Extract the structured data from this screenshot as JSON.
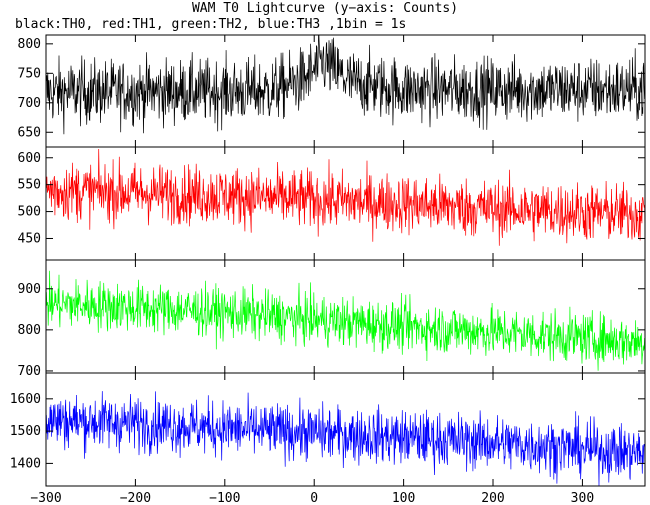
{
  "title": "WAM T0 Lightcurve (y−axis: Counts)",
  "subtitle": "black:TH0, red:TH1, green:TH2, blue:TH3 ,1bin = 1s",
  "chart_data": {
    "type": "line",
    "x_range": [
      -300,
      370
    ],
    "x_ticks": [
      -300,
      -200,
      -100,
      0,
      100,
      200,
      300
    ],
    "x_tick_labels": [
      "−300",
      "−200",
      "−100",
      "0",
      "100",
      "200",
      "300"
    ],
    "bin_seconds": 1,
    "panels": [
      {
        "name": "TH0",
        "color": "#000000",
        "ylim": [
          625,
          815
        ],
        "y_ticks": [
          650,
          700,
          750,
          800
        ],
        "y_tick_labels": [
          "650",
          "700",
          "750",
          "800"
        ],
        "trend": [
          [
            -300,
            718
          ],
          [
            -50,
            720
          ],
          [
            -10,
            740
          ],
          [
            10,
            770
          ],
          [
            40,
            735
          ],
          [
            100,
            722
          ],
          [
            370,
            722
          ]
        ],
        "noise": 27
      },
      {
        "name": "TH1",
        "color": "#ff0000",
        "ylim": [
          410,
          620
        ],
        "y_ticks": [
          450,
          500,
          550,
          600
        ],
        "y_tick_labels": [
          "450",
          "500",
          "550",
          "600"
        ],
        "trend": [
          [
            -300,
            540
          ],
          [
            -100,
            530
          ],
          [
            0,
            522
          ],
          [
            100,
            515
          ],
          [
            200,
            505
          ],
          [
            370,
            495
          ]
        ],
        "noise": 27
      },
      {
        "name": "TH2",
        "color": "#00ff00",
        "ylim": [
          695,
          970
        ],
        "y_ticks": [
          700,
          800,
          900
        ],
        "y_tick_labels": [
          "700",
          "800",
          "900"
        ],
        "trend": [
          [
            -300,
            865
          ],
          [
            -200,
            855
          ],
          [
            -100,
            842
          ],
          [
            0,
            825
          ],
          [
            100,
            808
          ],
          [
            200,
            795
          ],
          [
            300,
            780
          ],
          [
            370,
            770
          ]
        ],
        "noise": 30
      },
      {
        "name": "TH3",
        "color": "#0000ff",
        "ylim": [
          1330,
          1680
        ],
        "y_ticks": [
          1400,
          1500,
          1600
        ],
        "y_tick_labels": [
          "1400",
          "1500",
          "1600"
        ],
        "trend": [
          [
            -300,
            1535
          ],
          [
            -200,
            1525
          ],
          [
            -100,
            1508
          ],
          [
            0,
            1495
          ],
          [
            100,
            1480
          ],
          [
            200,
            1465
          ],
          [
            300,
            1445
          ],
          [
            370,
            1430
          ]
        ],
        "noise": 42
      }
    ]
  }
}
